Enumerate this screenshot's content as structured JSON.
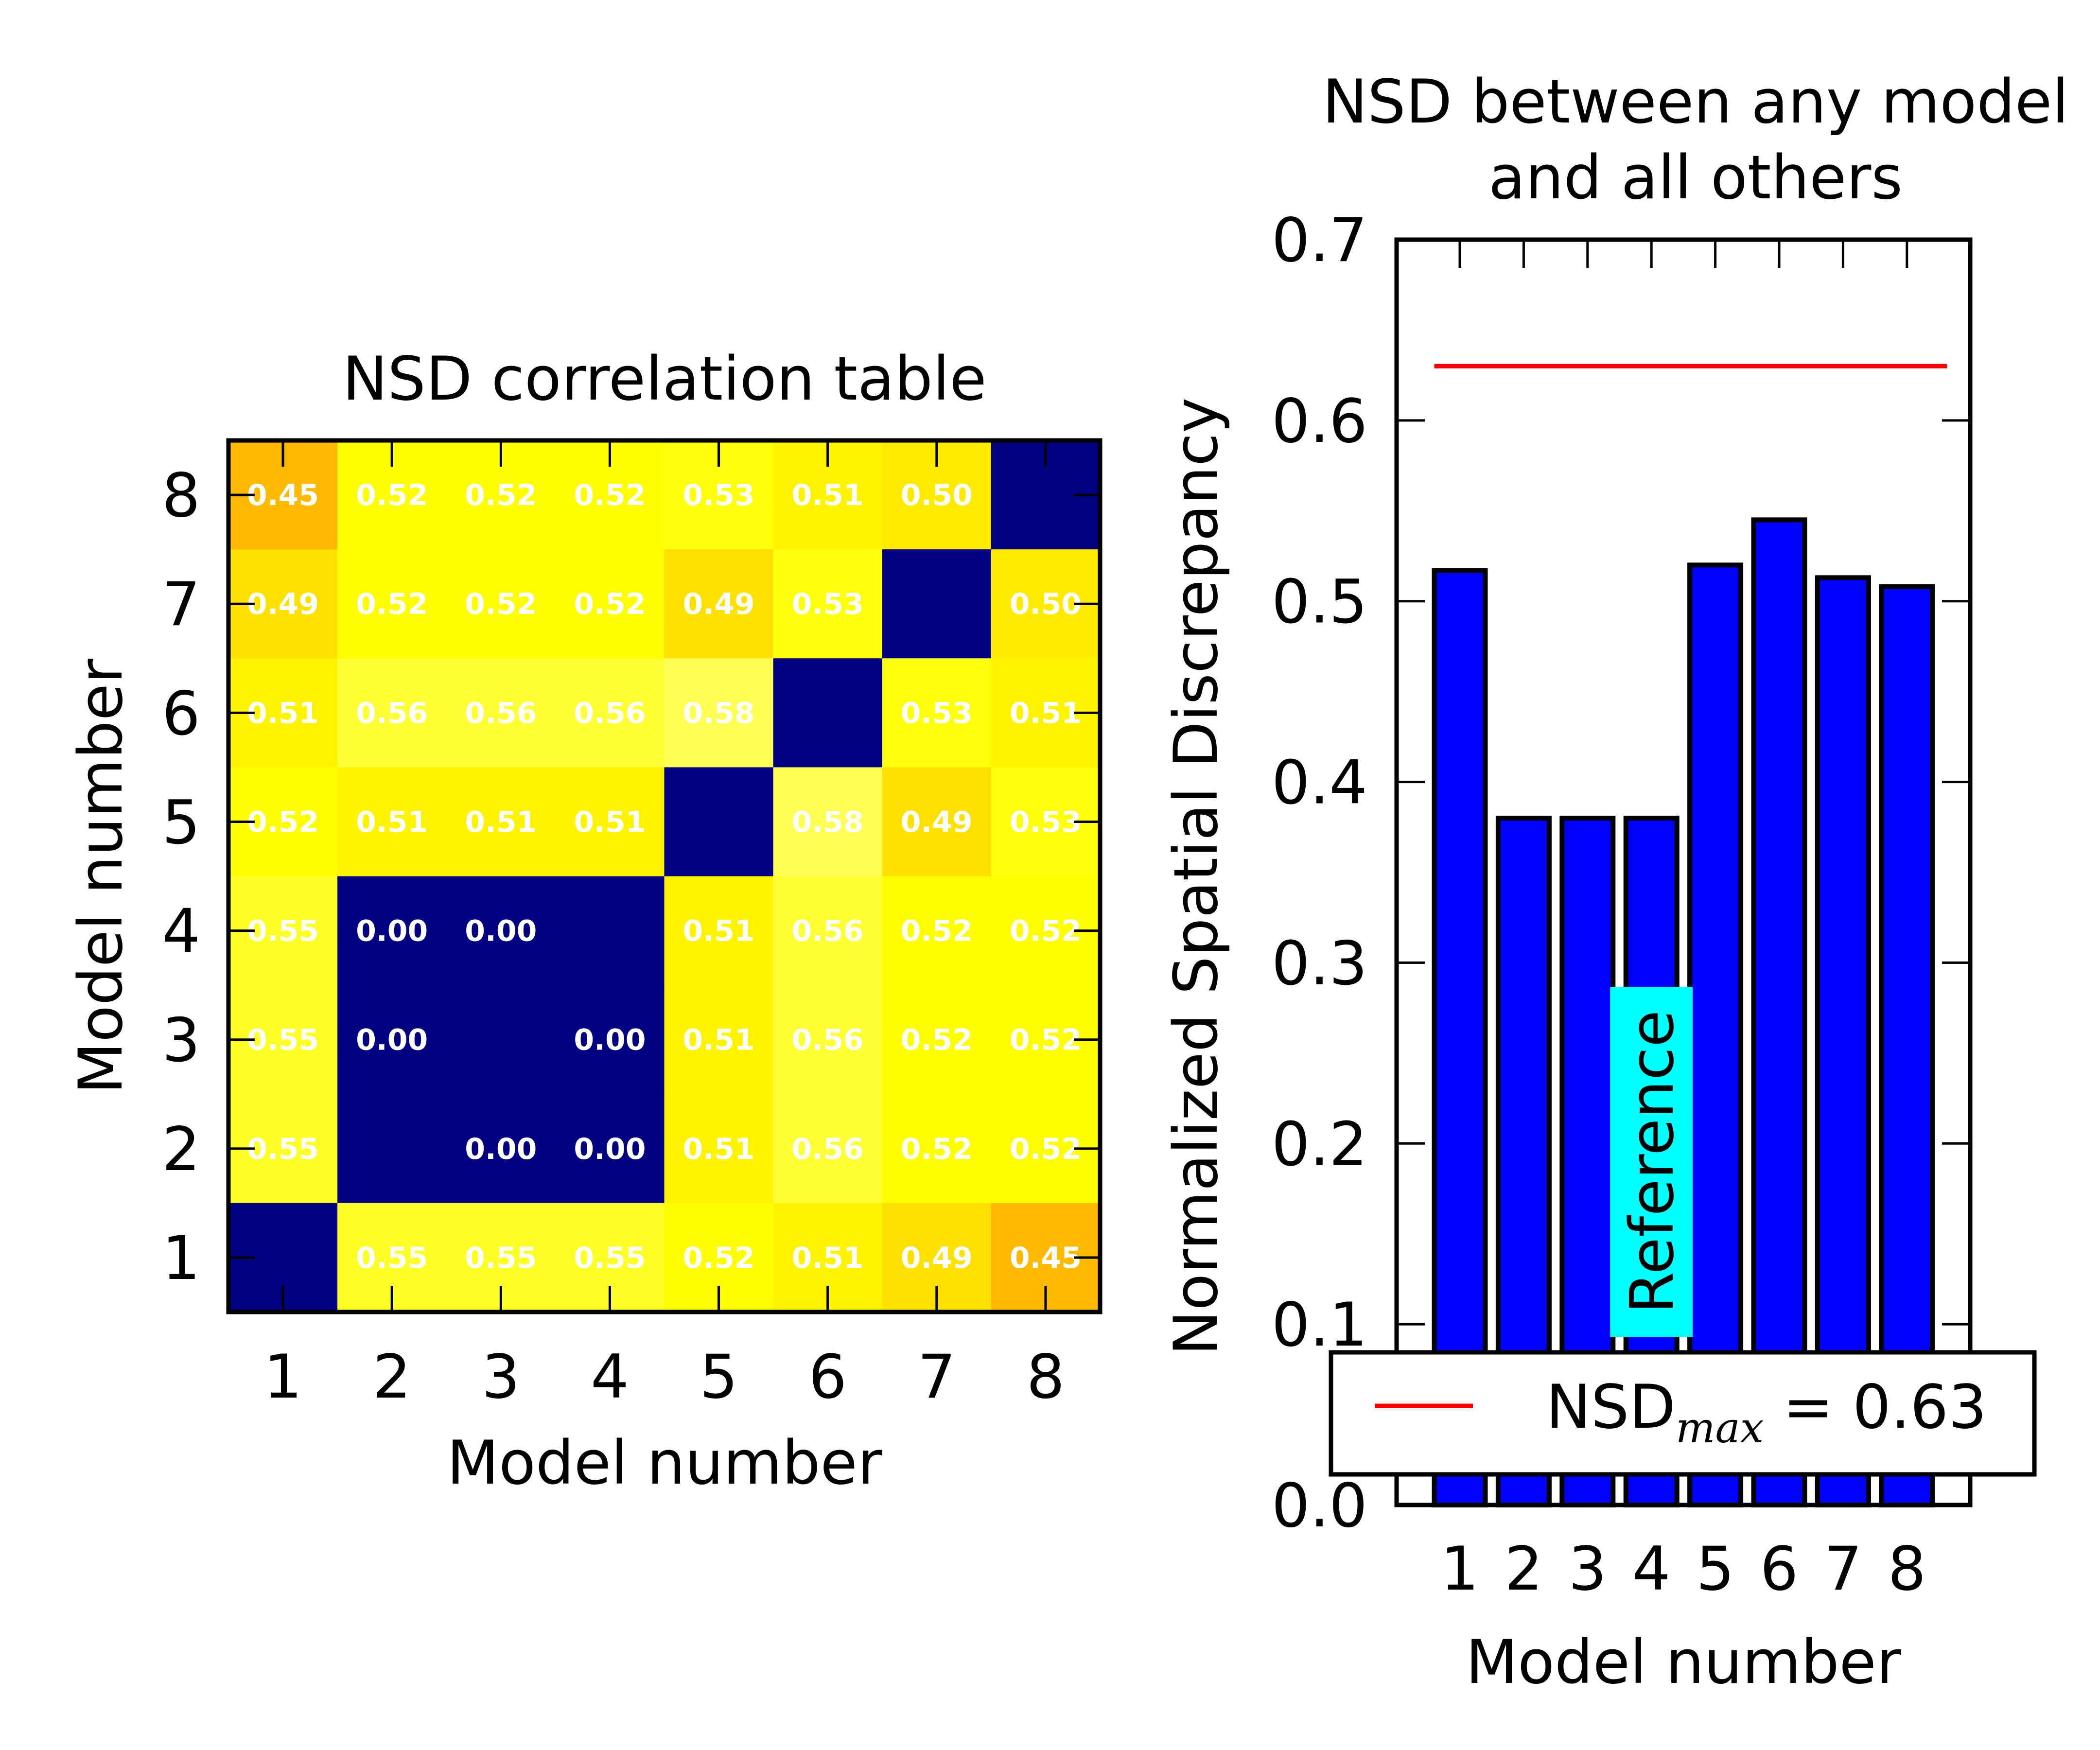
{
  "chart_data": [
    {
      "type": "heatmap",
      "title": "NSD correlation table",
      "xlabel": "Model number",
      "ylabel": "Model number",
      "x_categories": [
        "1",
        "2",
        "3",
        "4",
        "5",
        "6",
        "7",
        "8"
      ],
      "y_categories": [
        "1",
        "2",
        "3",
        "4",
        "5",
        "6",
        "7",
        "8"
      ],
      "rows_top_to_bottom": [
        {
          "model": "8",
          "values": [
            0.45,
            0.52,
            0.52,
            0.52,
            0.53,
            0.51,
            0.5,
            null
          ],
          "labels": [
            "0.45",
            "0.52",
            "0.52",
            "0.52",
            "0.53",
            "0.51",
            "0.50",
            ""
          ]
        },
        {
          "model": "7",
          "values": [
            0.49,
            0.52,
            0.52,
            0.52,
            0.49,
            0.53,
            null,
            0.5
          ],
          "labels": [
            "0.49",
            "0.52",
            "0.52",
            "0.52",
            "0.49",
            "0.53",
            "",
            "0.50"
          ]
        },
        {
          "model": "6",
          "values": [
            0.51,
            0.56,
            0.56,
            0.56,
            0.58,
            null,
            0.53,
            0.51
          ],
          "labels": [
            "0.51",
            "0.56",
            "0.56",
            "0.56",
            "0.58",
            "",
            "0.53",
            "0.51"
          ]
        },
        {
          "model": "5",
          "values": [
            0.52,
            0.51,
            0.51,
            0.51,
            null,
            0.58,
            0.49,
            0.53
          ],
          "labels": [
            "0.52",
            "0.51",
            "0.51",
            "0.51",
            "",
            "0.58",
            "0.49",
            "0.53"
          ]
        },
        {
          "model": "4",
          "values": [
            0.55,
            0.0,
            0.0,
            null,
            0.51,
            0.56,
            0.52,
            0.52
          ],
          "labels": [
            "0.55",
            "0.00",
            "0.00",
            "",
            "0.51",
            "0.56",
            "0.52",
            "0.52"
          ]
        },
        {
          "model": "3",
          "values": [
            0.55,
            0.0,
            null,
            0.0,
            0.51,
            0.56,
            0.52,
            0.52
          ],
          "labels": [
            "0.55",
            "0.00",
            "",
            "0.00",
            "0.51",
            "0.56",
            "0.52",
            "0.52"
          ]
        },
        {
          "model": "2",
          "values": [
            0.55,
            null,
            0.0,
            0.0,
            0.51,
            0.56,
            0.52,
            0.52
          ],
          "labels": [
            "0.55",
            "",
            "0.00",
            "0.00",
            "0.51",
            "0.56",
            "0.52",
            "0.52"
          ]
        },
        {
          "model": "1",
          "values": [
            null,
            0.55,
            0.55,
            0.55,
            0.52,
            0.51,
            0.49,
            0.45
          ],
          "labels": [
            "",
            "0.55",
            "0.55",
            "0.55",
            "0.52",
            "0.51",
            "0.49",
            "0.45"
          ]
        }
      ],
      "colormap": "hot",
      "zero_and_diagonal_color": "#000080"
    },
    {
      "type": "bar",
      "title_lines": [
        "NSD between any model",
        "and all others"
      ],
      "xlabel": "Model number",
      "ylabel": "Normalized Spatial Discrepancy",
      "categories": [
        "1",
        "2",
        "3",
        "4",
        "5",
        "6",
        "7",
        "8"
      ],
      "values": [
        0.517,
        0.38,
        0.38,
        0.38,
        0.52,
        0.545,
        0.513,
        0.508
      ],
      "ylim": [
        0.0,
        0.7
      ],
      "yticks": [
        "0.0",
        "0.1",
        "0.2",
        "0.3",
        "0.4",
        "0.5",
        "0.6",
        "0.7"
      ],
      "bar_color": "#0000ff",
      "reference_line": {
        "value": 0.63,
        "color": "#ff0000"
      },
      "annotation": {
        "text": "Reference",
        "model": "4",
        "color": "#00ffff"
      },
      "legend": {
        "prefix": "NSD",
        "subscript": "max",
        "suffix": " = 0.63",
        "placement": "lower center"
      }
    }
  ]
}
